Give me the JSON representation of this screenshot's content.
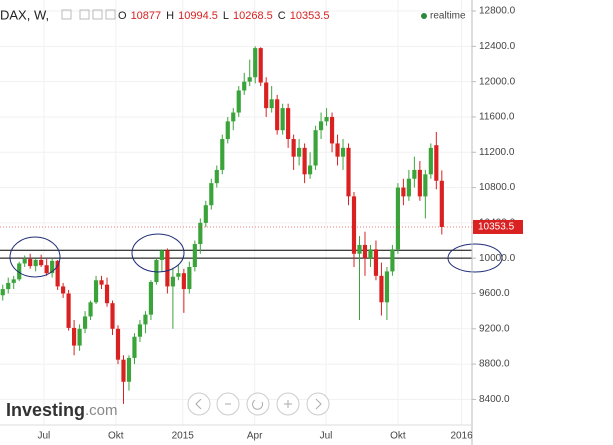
{
  "chart_data": {
    "type": "candlestick",
    "symbol": "DAX, W,",
    "ohlc_labels": [
      "O",
      "H",
      "L",
      "C"
    ],
    "status": "realtime",
    "logo": [
      "Investing",
      ".com"
    ],
    "up_color": "#3aa43a",
    "down_color": "#d92121",
    "grid": true,
    "categories": [
      null,
      null,
      null,
      null,
      null,
      null,
      null,
      null,
      null,
      null,
      null,
      null,
      null,
      null,
      null,
      null,
      null,
      null,
      null,
      null,
      null,
      null,
      null,
      null,
      null,
      null,
      null,
      null,
      null,
      null,
      null,
      null,
      null,
      null,
      null,
      null,
      null,
      null,
      null,
      null,
      null,
      null,
      null,
      null,
      null,
      null,
      null,
      null,
      null,
      null,
      null,
      null,
      null,
      null,
      null,
      null,
      null,
      null,
      null,
      null,
      null,
      null,
      null,
      null,
      null,
      null,
      null,
      null,
      null,
      null,
      null,
      null,
      null,
      null,
      null,
      null,
      null,
      null,
      null,
      null,
      null
    ],
    "xlim": [
      -0.5,
      85.5
    ],
    "xticks": [
      {
        "value": 7.5,
        "label": "Jul"
      },
      {
        "value": 20.6,
        "label": "Okt"
      },
      {
        "value": 32.8,
        "label": "2015"
      },
      {
        "value": 45.9,
        "label": "Apr"
      },
      {
        "value": 58.9,
        "label": "Jul"
      },
      {
        "value": 72.0,
        "label": "Okt"
      },
      {
        "value": 83.6,
        "label": "2016"
      }
    ],
    "ylim": [
      8110,
      12925
    ],
    "yticks": [
      {
        "value": 12800,
        "label": "12800.0"
      },
      {
        "value": 12400,
        "label": "12400.0"
      },
      {
        "value": 12000,
        "label": "12000.0"
      },
      {
        "value": 11600,
        "label": "11600.0"
      },
      {
        "value": 11200,
        "label": "11200.0"
      },
      {
        "value": 10800,
        "label": "10800.0"
      },
      {
        "value": 10400,
        "label": "10400.0"
      },
      {
        "value": 10000,
        "label": "10000.0"
      },
      {
        "value": 9600,
        "label": "9600.0"
      },
      {
        "value": 9200,
        "label": "9200.0"
      },
      {
        "value": 8800,
        "label": "8800.0"
      },
      {
        "value": 8400,
        "label": "8400.0"
      }
    ],
    "hlines": [
      10000,
      10090
    ],
    "series": [
      {
        "name": "DAX",
        "open": [
          9580,
          9650,
          9720,
          9760,
          9940,
          9990,
          9910,
          9980,
          9920,
          9830,
          9970,
          9680,
          9600,
          9210,
          9010,
          9200,
          9340,
          9500,
          9750,
          9700,
          9490,
          9200,
          8850,
          8600,
          8870,
          9110,
          9250,
          9360,
          9730,
          9980,
          10090,
          9680,
          9790,
          9830,
          9650,
          9900,
          10160,
          10400,
          10600,
          10850,
          11000,
          11350,
          11550,
          11650,
          11900,
          12000,
          12050,
          12380,
          11990,
          11700,
          11800,
          11450,
          11700,
          11350,
          11150,
          11250,
          10950,
          11050,
          11450,
          11550,
          11600,
          11300,
          11150,
          11250,
          10700,
          10050,
          10150,
          10000,
          10100,
          9800,
          9500,
          9850,
          10100,
          10800,
          10700,
          10900,
          11000,
          10700,
          10950,
          11280,
          10877.0
        ],
        "high": [
          9700,
          9780,
          9800,
          9960,
          10030,
          10050,
          10000,
          10040,
          9990,
          10000,
          9980,
          9720,
          9640,
          9300,
          9250,
          9400,
          9520,
          9800,
          9800,
          9780,
          9520,
          9240,
          8900,
          8900,
          9150,
          9300,
          9400,
          9750,
          10000,
          10100,
          10110,
          9890,
          9920,
          9880,
          9960,
          10200,
          10450,
          10650,
          10900,
          11050,
          11400,
          11600,
          11700,
          11950,
          12100,
          12250,
          12400,
          12390,
          12050,
          11950,
          11850,
          11750,
          11750,
          11400,
          11350,
          11300,
          11200,
          11500,
          11650,
          11700,
          11650,
          11400,
          11350,
          11300,
          10750,
          10250,
          10300,
          10150,
          10200,
          9950,
          9900,
          10150,
          10850,
          10900,
          11000,
          11150,
          11100,
          11000,
          11300,
          11430,
          10994.5
        ],
        "low": [
          9520,
          9600,
          9650,
          9740,
          9900,
          9880,
          9850,
          9900,
          9800,
          9780,
          9640,
          9550,
          9180,
          8900,
          8950,
          9150,
          9300,
          9480,
          9650,
          9450,
          9130,
          8800,
          8350,
          8500,
          8800,
          9050,
          9150,
          9300,
          9700,
          9850,
          9600,
          9200,
          9750,
          9380,
          9600,
          9850,
          10050,
          10350,
          10550,
          10800,
          10950,
          11300,
          11450,
          11600,
          11850,
          11950,
          11980,
          11950,
          11600,
          11650,
          11400,
          11400,
          11250,
          11000,
          11050,
          10850,
          10900,
          11000,
          11350,
          11500,
          11200,
          11050,
          11000,
          10600,
          9900,
          9300,
          9800,
          9900,
          9750,
          9350,
          9300,
          9800,
          10050,
          10600,
          10650,
          10800,
          10650,
          10450,
          10900,
          10780,
          10268.5
        ],
        "close": [
          9650,
          9720,
          9760,
          9940,
          9990,
          9910,
          9980,
          9920,
          9830,
          9970,
          9680,
          9600,
          9210,
          9010,
          9200,
          9340,
          9500,
          9750,
          9700,
          9490,
          9200,
          8850,
          8600,
          8870,
          9110,
          9250,
          9360,
          9730,
          9980,
          10090,
          9680,
          9790,
          9830,
          9650,
          9900,
          10160,
          10400,
          10600,
          10850,
          11000,
          11350,
          11550,
          11650,
          11900,
          12000,
          12050,
          12380,
          11990,
          11700,
          11800,
          11450,
          11700,
          11350,
          11150,
          11250,
          10950,
          11050,
          11450,
          11550,
          11600,
          11300,
          11150,
          11250,
          10700,
          10050,
          10150,
          10000,
          10100,
          9800,
          9500,
          9850,
          10100,
          10800,
          10700,
          10900,
          11000,
          10700,
          10950,
          11250,
          10877,
          10353.5
        ]
      }
    ]
  }
}
